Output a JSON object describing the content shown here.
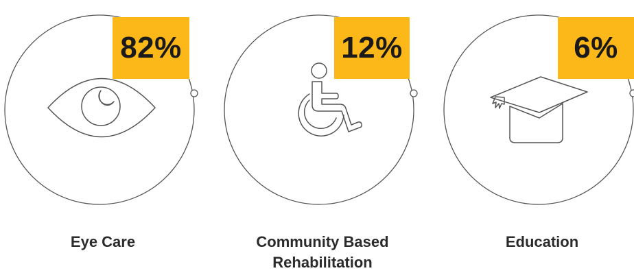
{
  "theme": {
    "accent": "#fbb818",
    "line": "#555555",
    "text": "#2b2b2b"
  },
  "stats": [
    {
      "percent": "82%",
      "icon": "eye-icon",
      "label_lines": [
        "Eye Care"
      ]
    },
    {
      "percent": "12%",
      "icon": "wheelchair-icon",
      "label_lines": [
        "Community Based",
        "Rehabilitation"
      ]
    },
    {
      "percent": "6%",
      "icon": "graduation-cap-icon",
      "label_lines": [
        "Education"
      ]
    }
  ]
}
